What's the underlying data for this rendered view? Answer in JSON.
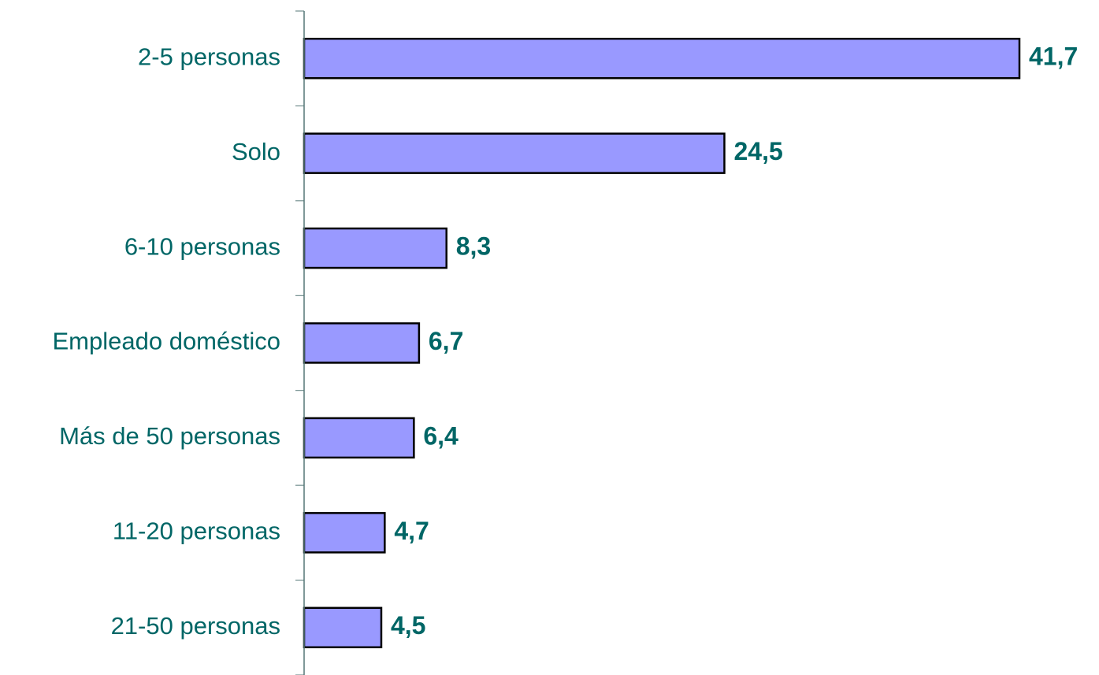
{
  "chart_data": {
    "type": "bar",
    "orientation": "horizontal",
    "categories": [
      "2-5 personas",
      "Solo",
      "6-10 personas",
      "Empleado doméstico",
      "Más de 50 personas",
      "11-20 personas",
      "21-50 personas"
    ],
    "values": [
      41.7,
      24.5,
      8.3,
      6.7,
      6.4,
      4.7,
      4.5
    ],
    "value_labels": [
      "41,7",
      "24,5",
      "8,3",
      "6,7",
      "6,4",
      "4,7",
      "4,5"
    ],
    "color": "#9999ff"
  }
}
